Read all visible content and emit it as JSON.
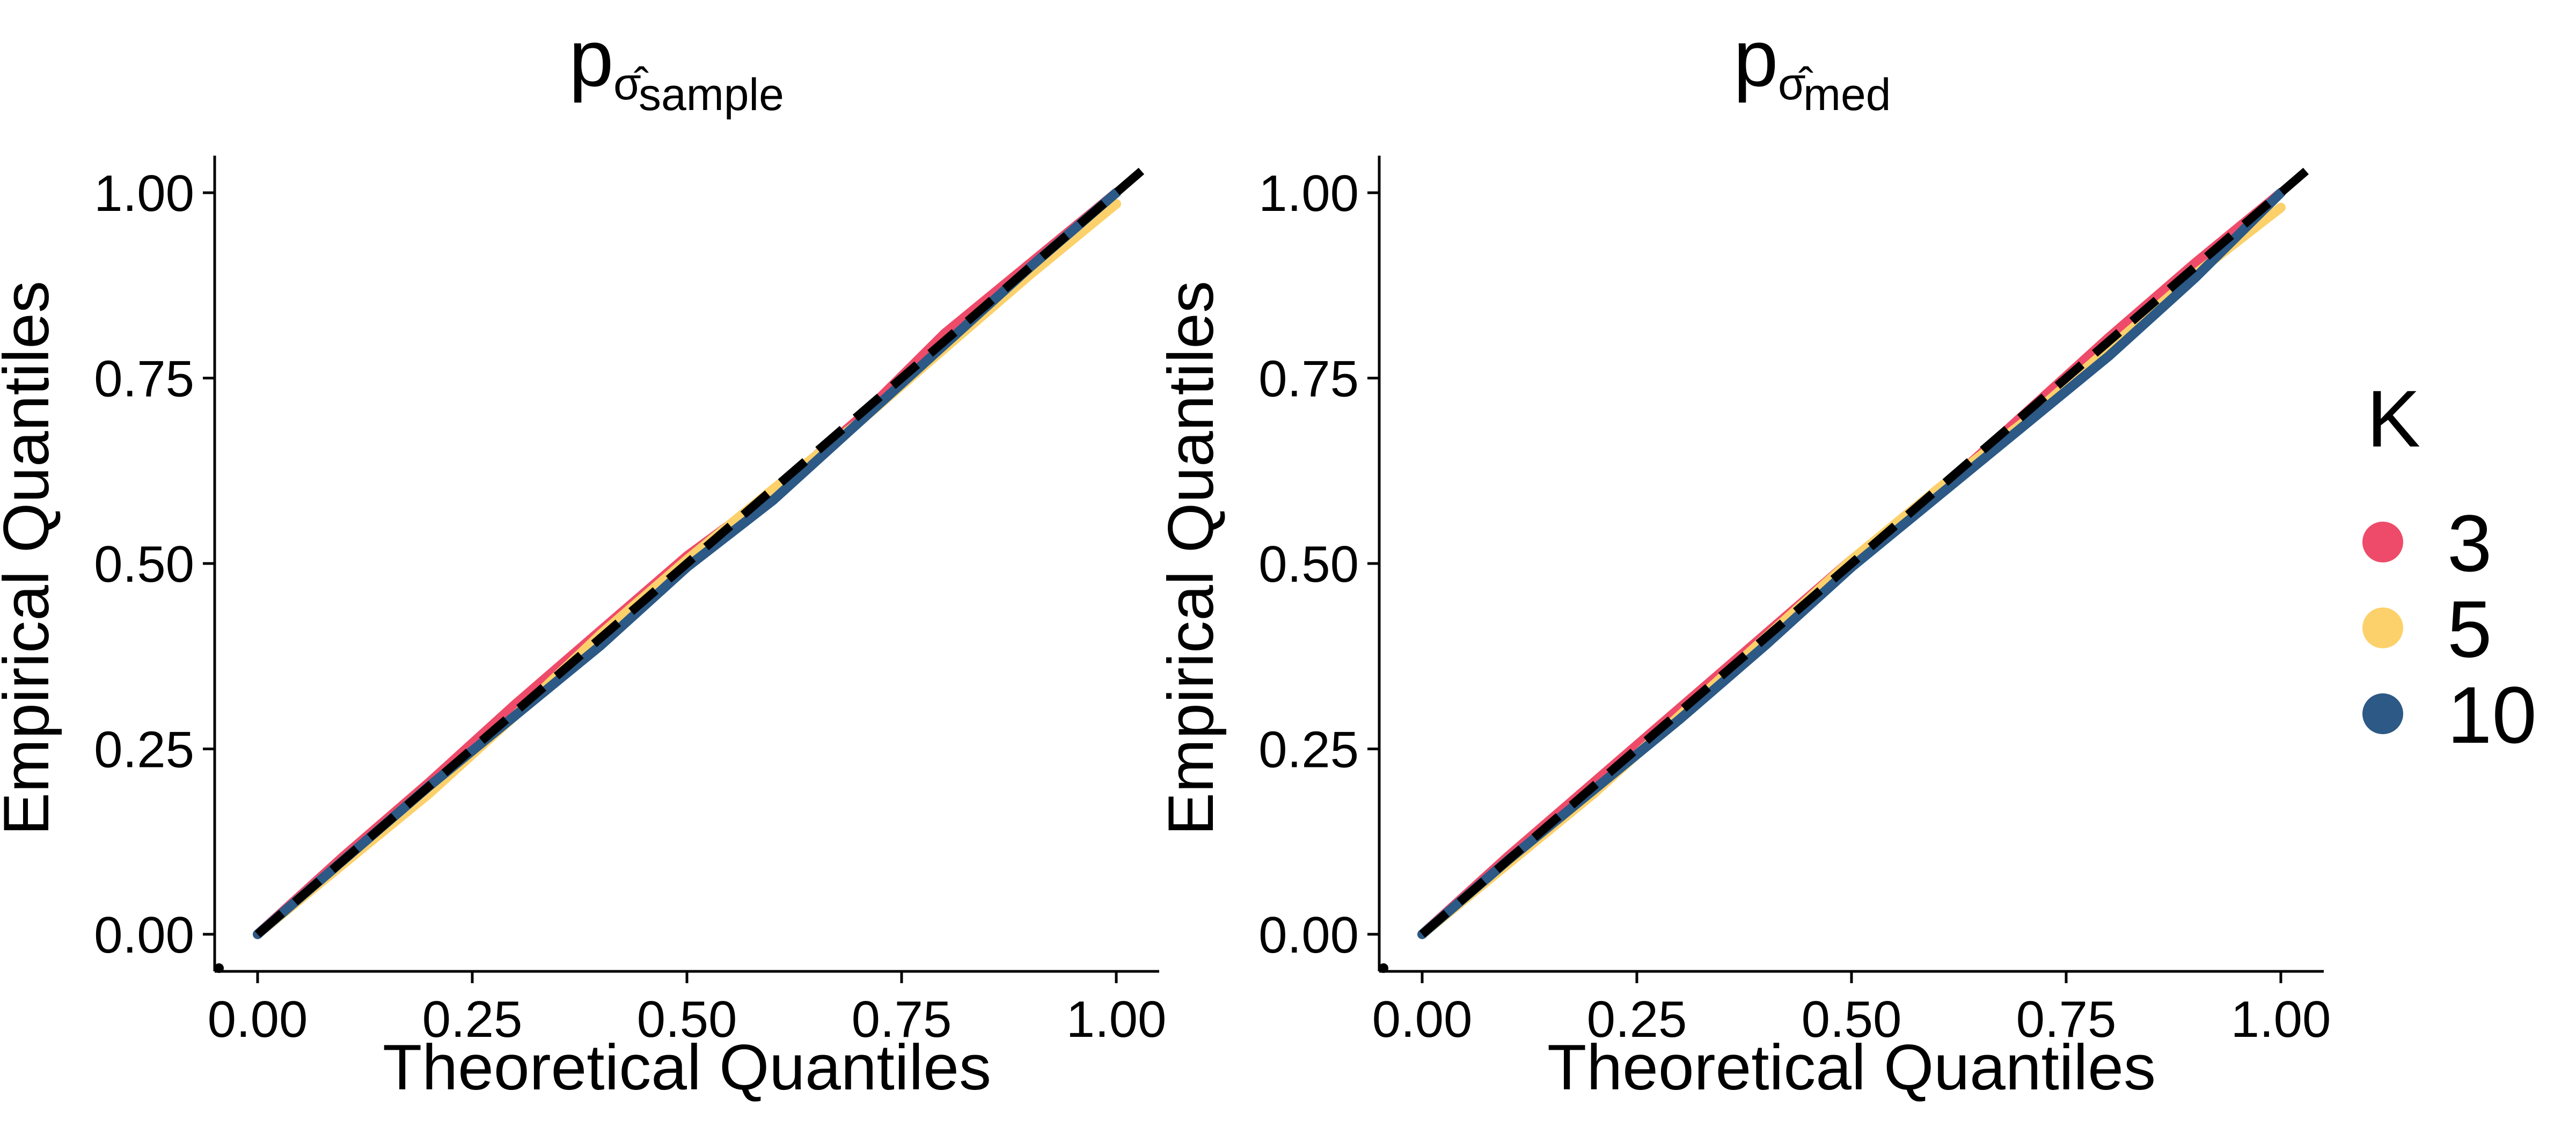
{
  "chart_data": [
    {
      "type": "line",
      "title_main": "p",
      "title_symbol": "σ̂",
      "title_subscript": "sample",
      "xlabel": "Theoretical Quantiles",
      "ylabel": "Empirical Quantiles",
      "xlim": [
        -0.05,
        1.05
      ],
      "ylim": [
        -0.05,
        1.05
      ],
      "xticks": [
        "0.00",
        "0.25",
        "0.50",
        "0.75",
        "1.00"
      ],
      "yticks": [
        "0.00",
        "0.25",
        "0.50",
        "0.75",
        "1.00"
      ],
      "grid": false,
      "reference_line": {
        "style": "dashed",
        "color": "#000000",
        "slope": 1,
        "intercept": 0
      },
      "x": [
        0.0,
        0.1,
        0.2,
        0.3,
        0.4,
        0.5,
        0.6,
        0.7,
        0.8,
        0.9,
        1.0
      ],
      "series": [
        {
          "name": "3",
          "values": [
            0.0,
            0.105,
            0.205,
            0.31,
            0.41,
            0.51,
            0.595,
            0.695,
            0.81,
            0.905,
            1.0
          ]
        },
        {
          "name": "5",
          "values": [
            0.0,
            0.095,
            0.19,
            0.295,
            0.405,
            0.505,
            0.6,
            0.69,
            0.79,
            0.89,
            0.985
          ]
        },
        {
          "name": "10",
          "values": [
            0.0,
            0.1,
            0.2,
            0.295,
            0.39,
            0.495,
            0.585,
            0.69,
            0.795,
            0.9,
            1.0
          ]
        }
      ]
    },
    {
      "type": "line",
      "title_main": "p",
      "title_symbol": "σ̂",
      "title_subscript": "med",
      "xlabel": "Theoretical Quantiles",
      "ylabel": "Empirical Quantiles",
      "xlim": [
        -0.05,
        1.05
      ],
      "ylim": [
        -0.05,
        1.05
      ],
      "xticks": [
        "0.00",
        "0.25",
        "0.50",
        "0.75",
        "1.00"
      ],
      "yticks": [
        "0.00",
        "0.25",
        "0.50",
        "0.75",
        "1.00"
      ],
      "grid": false,
      "reference_line": {
        "style": "dashed",
        "color": "#000000",
        "slope": 1,
        "intercept": 0
      },
      "x": [
        0.0,
        0.1,
        0.2,
        0.3,
        0.4,
        0.5,
        0.6,
        0.7,
        0.8,
        0.9,
        1.0
      ],
      "series": [
        {
          "name": "3",
          "values": [
            0.0,
            0.105,
            0.205,
            0.305,
            0.405,
            0.505,
            0.595,
            0.7,
            0.805,
            0.905,
            1.0
          ]
        },
        {
          "name": "5",
          "values": [
            0.0,
            0.095,
            0.19,
            0.295,
            0.4,
            0.505,
            0.6,
            0.69,
            0.79,
            0.89,
            0.98
          ]
        },
        {
          "name": "10",
          "values": [
            0.0,
            0.1,
            0.195,
            0.29,
            0.39,
            0.495,
            0.59,
            0.685,
            0.78,
            0.885,
            1.0
          ]
        }
      ]
    }
  ],
  "legend": {
    "title": "K",
    "placement": "right",
    "entries": [
      {
        "label": "3",
        "color": "#EE4B6A"
      },
      {
        "label": "5",
        "color": "#FCD16B"
      },
      {
        "label": "10",
        "color": "#2C5985"
      }
    ]
  }
}
